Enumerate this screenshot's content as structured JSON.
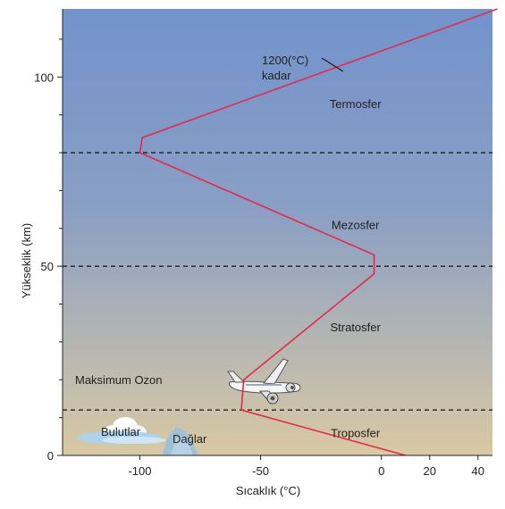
{
  "chart_data": {
    "type": "line",
    "title": "",
    "xlabel": "Sıcaklık (°C)",
    "ylabel": "Yükseklik (km)",
    "xlim": [
      -132,
      46
    ],
    "ylim": [
      0,
      118
    ],
    "x_ticks": [
      -100,
      -50,
      0,
      20,
      40
    ],
    "y_ticks": [
      0,
      50,
      100
    ],
    "y_minor_step": 10,
    "series": [
      {
        "name": "",
        "color": "#e8274b",
        "points": [
          {
            "x": 10,
            "y": 0
          },
          {
            "x": -58,
            "y": 12
          },
          {
            "x": -57,
            "y": 20
          },
          {
            "x": -3,
            "y": 48
          },
          {
            "x": -3,
            "y": 53
          },
          {
            "x": -100,
            "y": 80
          },
          {
            "x": -99,
            "y": 84
          },
          {
            "x": 48,
            "y": 118
          }
        ]
      }
    ],
    "boundaries": [
      12,
      50,
      80
    ],
    "layers": [
      {
        "label": "Termosfer",
        "x": -20,
        "y": 93
      },
      {
        "label": "Mezosfer",
        "x": -20,
        "y": 61
      },
      {
        "label": "Stratosfer",
        "x": -20,
        "y": 34
      },
      {
        "label": "Troposfer",
        "x": -20,
        "y": 6
      }
    ],
    "annotations": {
      "max_temp": {
        "line1": "1200(°C)",
        "line2": "kadar"
      },
      "ozone": "Maksimum Ozon",
      "clouds": "Bulutlar",
      "mountains": "Dağlar"
    },
    "background_gradient": {
      "top": "#7293cc",
      "bottom": "#d9c9a3"
    },
    "grid": false,
    "legend": "none"
  }
}
